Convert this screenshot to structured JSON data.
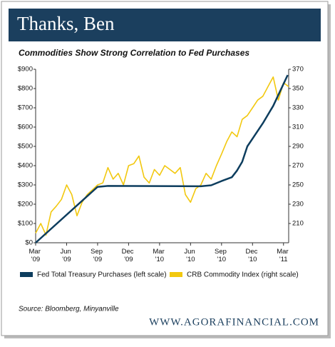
{
  "chart_data": {
    "type": "line",
    "title": "Thanks, Ben",
    "subtitle": "Commodities Show Strong Correlation to Fed Purchases",
    "source": "Source:  Bloomberg, Minyanville",
    "credit": "WWW.AGORAFINANCIAL.COM",
    "xlim": [
      0,
      24.5
    ],
    "xticks": [
      {
        "value": 0,
        "label": "Mar '09"
      },
      {
        "value": 3,
        "label": "Jun '09"
      },
      {
        "value": 6,
        "label": "Sep '09"
      },
      {
        "value": 9,
        "label": "Dec '09"
      },
      {
        "value": 12,
        "label": "Mar '10"
      },
      {
        "value": 15,
        "label": "Jun '10"
      },
      {
        "value": 18,
        "label": "Sep '10"
      },
      {
        "value": 21,
        "label": "Dec '10"
      },
      {
        "value": 24,
        "label": "Mar '11"
      }
    ],
    "ylim": [
      0,
      900
    ],
    "yticks": [
      {
        "value": 0,
        "label": "$0"
      },
      {
        "value": 100,
        "label": "$100"
      },
      {
        "value": 200,
        "label": "$200"
      },
      {
        "value": 300,
        "label": "$300"
      },
      {
        "value": 400,
        "label": "$400"
      },
      {
        "value": 500,
        "label": "$500"
      },
      {
        "value": 600,
        "label": "$600"
      },
      {
        "value": 700,
        "label": "$700"
      },
      {
        "value": 800,
        "label": "$800"
      },
      {
        "value": 900,
        "label": "$900"
      }
    ],
    "y2lim": [
      190,
      370
    ],
    "y2ticks": [
      210,
      230,
      250,
      270,
      290,
      310,
      330,
      350,
      370
    ],
    "series": [
      {
        "name": "Fed Total Treasury Purchases (left scale)",
        "color": "#0d3d5e",
        "x": [
          0,
          6,
          7,
          16,
          17,
          18,
          19,
          19.5,
          20,
          20.5,
          21,
          22,
          23,
          24.4
        ],
        "values": [
          0,
          290,
          295,
          293,
          298,
          320,
          340,
          375,
          420,
          500,
          540,
          620,
          710,
          870
        ]
      },
      {
        "name": "CRB Commodity Index (right scale)",
        "color": "#f2c80f",
        "axis": "y2",
        "x": [
          0,
          0.5,
          1,
          1.5,
          2,
          2.5,
          3,
          3.5,
          4,
          4.5,
          5,
          5.5,
          6,
          6.5,
          7,
          7.5,
          8,
          8.5,
          9,
          9.5,
          10,
          10.5,
          11,
          11.5,
          12,
          12.5,
          13,
          13.5,
          14,
          14.5,
          15,
          15.5,
          16,
          16.5,
          17,
          17.5,
          18,
          18.5,
          19,
          19.5,
          20,
          20.5,
          21,
          21.5,
          22,
          22.5,
          23,
          23.5,
          24,
          24.5
        ],
        "values": [
          200,
          210,
          198,
          222,
          228,
          235,
          250,
          240,
          218,
          232,
          240,
          245,
          250,
          252,
          268,
          256,
          262,
          250,
          270,
          272,
          280,
          258,
          252,
          266,
          260,
          270,
          266,
          262,
          268,
          240,
          232,
          246,
          250,
          262,
          256,
          270,
          282,
          295,
          305,
          300,
          318,
          322,
          330,
          338,
          342,
          352,
          362,
          338,
          356,
          352
        ]
      }
    ]
  }
}
